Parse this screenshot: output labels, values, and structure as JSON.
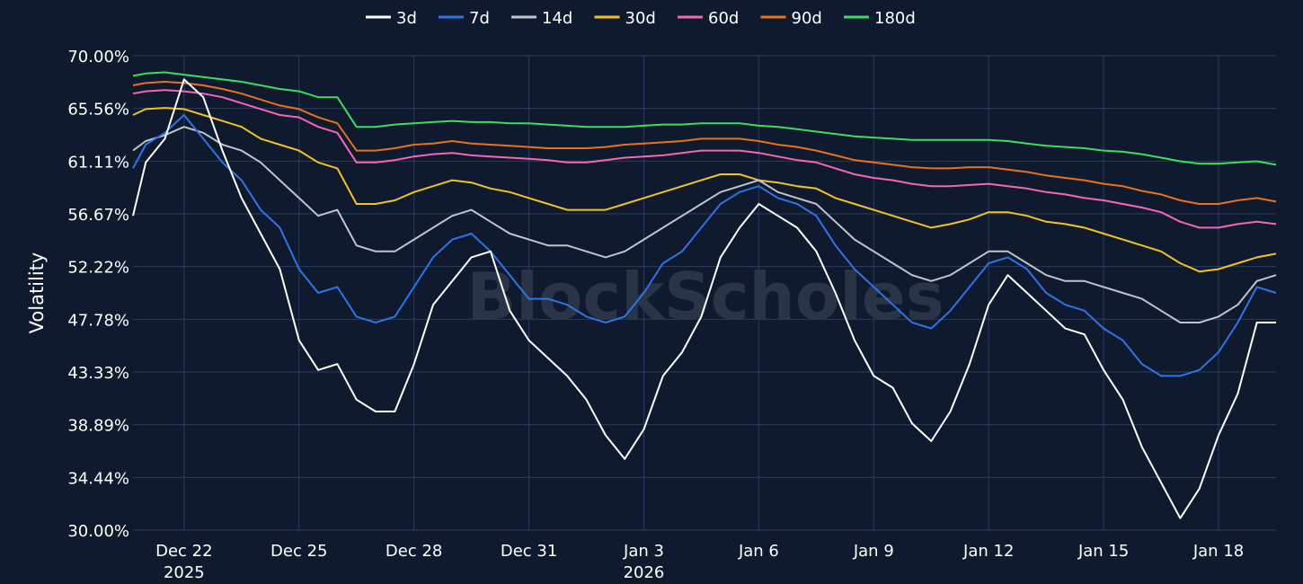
{
  "chart_data": {
    "type": "line",
    "title": "",
    "xlabel": "",
    "ylabel": "Volatility",
    "watermark": "BlockScholes",
    "ylim": [
      30.0,
      70.0
    ],
    "xlim": [
      "2025-12-20T16:00",
      "2026-01-19T12:00"
    ],
    "grid": true,
    "legend_position": "top-center",
    "y_ticks": [
      "70.00%",
      "65.56%",
      "61.11%",
      "56.67%",
      "52.22%",
      "47.78%",
      "43.33%",
      "38.89%",
      "34.44%",
      "30.00%"
    ],
    "x_ticks": [
      {
        "date": "2025-12-22",
        "label": "Dec 22",
        "sublabel": "2025"
      },
      {
        "date": "2025-12-25",
        "label": "Dec 25",
        "sublabel": ""
      },
      {
        "date": "2025-12-28",
        "label": "Dec 28",
        "sublabel": ""
      },
      {
        "date": "2025-12-31",
        "label": "Dec 31",
        "sublabel": ""
      },
      {
        "date": "2026-01-03",
        "label": "Jan 3",
        "sublabel": "2026"
      },
      {
        "date": "2026-01-06",
        "label": "Jan 6",
        "sublabel": ""
      },
      {
        "date": "2026-01-09",
        "label": "Jan 9",
        "sublabel": ""
      },
      {
        "date": "2026-01-12",
        "label": "Jan 12",
        "sublabel": ""
      },
      {
        "date": "2026-01-15",
        "label": "Jan 15",
        "sublabel": ""
      },
      {
        "date": "2026-01-18",
        "label": "Jan 18",
        "sublabel": ""
      }
    ],
    "x": [
      "2025-12-20T16:00",
      "2025-12-21T00:00",
      "2025-12-21T12:00",
      "2025-12-22T00:00",
      "2025-12-22T12:00",
      "2025-12-23T00:00",
      "2025-12-23T12:00",
      "2025-12-24T00:00",
      "2025-12-24T12:00",
      "2025-12-25T00:00",
      "2025-12-25T12:00",
      "2025-12-26T00:00",
      "2025-12-26T12:00",
      "2025-12-27T00:00",
      "2025-12-27T12:00",
      "2025-12-28T00:00",
      "2025-12-28T12:00",
      "2025-12-29T00:00",
      "2025-12-29T12:00",
      "2025-12-30T00:00",
      "2025-12-30T12:00",
      "2025-12-31T00:00",
      "2025-12-31T12:00",
      "2026-01-01T00:00",
      "2026-01-01T12:00",
      "2026-01-02T00:00",
      "2026-01-02T12:00",
      "2026-01-03T00:00",
      "2026-01-03T12:00",
      "2026-01-04T00:00",
      "2026-01-04T12:00",
      "2026-01-05T00:00",
      "2026-01-05T12:00",
      "2026-01-06T00:00",
      "2026-01-06T12:00",
      "2026-01-07T00:00",
      "2026-01-07T12:00",
      "2026-01-08T00:00",
      "2026-01-08T12:00",
      "2026-01-09T00:00",
      "2026-01-09T12:00",
      "2026-01-10T00:00",
      "2026-01-10T12:00",
      "2026-01-11T00:00",
      "2026-01-11T12:00",
      "2026-01-12T00:00",
      "2026-01-12T12:00",
      "2026-01-13T00:00",
      "2026-01-13T12:00",
      "2026-01-14T00:00",
      "2026-01-14T12:00",
      "2026-01-15T00:00",
      "2026-01-15T12:00",
      "2026-01-16T00:00",
      "2026-01-16T12:00",
      "2026-01-17T00:00",
      "2026-01-17T12:00",
      "2026-01-18T00:00",
      "2026-01-18T12:00",
      "2026-01-19T00:00",
      "2026-01-19T12:00"
    ],
    "series": [
      {
        "name": "3d",
        "color": "#ffffff",
        "values": [
          56.5,
          61.0,
          63.0,
          68.0,
          66.5,
          62.0,
          58.0,
          55.0,
          52.0,
          46.0,
          43.5,
          44.0,
          41.0,
          40.0,
          40.0,
          44.0,
          49.0,
          51.0,
          53.0,
          53.5,
          48.5,
          46.0,
          44.5,
          43.0,
          41.0,
          38.0,
          36.0,
          38.5,
          43.0,
          45.0,
          48.0,
          53.0,
          55.5,
          57.5,
          56.5,
          55.5,
          53.5,
          50.0,
          46.0,
          43.0,
          42.0,
          39.0,
          37.5,
          40.0,
          44.0,
          49.0,
          51.5,
          50.0,
          48.5,
          47.0,
          46.5,
          43.5,
          41.0,
          37.0,
          34.0,
          31.0,
          33.5,
          38.0,
          41.5,
          47.5,
          47.5
        ]
      },
      {
        "name": "7d",
        "color": "#2f73e8",
        "values": [
          60.5,
          62.5,
          63.5,
          65.0,
          63.0,
          61.0,
          59.5,
          57.0,
          55.5,
          52.0,
          50.0,
          50.5,
          48.0,
          47.5,
          48.0,
          50.5,
          53.0,
          54.5,
          55.0,
          53.5,
          51.5,
          49.5,
          49.5,
          49.0,
          48.0,
          47.5,
          48.0,
          50.0,
          52.5,
          53.5,
          55.5,
          57.5,
          58.5,
          59.0,
          58.0,
          57.5,
          56.5,
          54.0,
          52.0,
          50.5,
          49.0,
          47.5,
          47.0,
          48.5,
          50.5,
          52.5,
          53.0,
          52.0,
          50.0,
          49.0,
          48.5,
          47.0,
          46.0,
          44.0,
          43.0,
          43.0,
          43.5,
          45.0,
          47.5,
          50.5,
          50.0
        ]
      },
      {
        "name": "14d",
        "color": "#c0c4cc",
        "values": [
          62.0,
          62.8,
          63.3,
          64.0,
          63.5,
          62.5,
          62.0,
          61.0,
          59.5,
          58.0,
          56.5,
          57.0,
          54.0,
          53.5,
          53.5,
          54.5,
          55.5,
          56.5,
          57.0,
          56.0,
          55.0,
          54.5,
          54.0,
          54.0,
          53.5,
          53.0,
          53.5,
          54.5,
          55.5,
          56.5,
          57.5,
          58.5,
          59.0,
          59.5,
          58.5,
          58.0,
          57.5,
          56.0,
          54.5,
          53.5,
          52.5,
          51.5,
          51.0,
          51.5,
          52.5,
          53.5,
          53.5,
          52.5,
          51.5,
          51.0,
          51.0,
          50.5,
          50.0,
          49.5,
          48.5,
          47.5,
          47.5,
          48.0,
          49.0,
          51.0,
          51.5
        ]
      },
      {
        "name": "30d",
        "color": "#f2c227",
        "values": [
          65.0,
          65.5,
          65.6,
          65.5,
          65.0,
          64.5,
          64.0,
          63.0,
          62.5,
          62.0,
          61.0,
          60.5,
          57.5,
          57.5,
          57.8,
          58.5,
          59.0,
          59.5,
          59.3,
          58.8,
          58.5,
          58.0,
          57.5,
          57.0,
          57.0,
          57.0,
          57.5,
          58.0,
          58.5,
          59.0,
          59.5,
          60.0,
          60.0,
          59.5,
          59.3,
          59.0,
          58.8,
          58.0,
          57.5,
          57.0,
          56.5,
          56.0,
          55.5,
          55.8,
          56.2,
          56.8,
          56.8,
          56.5,
          56.0,
          55.8,
          55.5,
          55.0,
          54.5,
          54.0,
          53.5,
          52.5,
          51.8,
          52.0,
          52.5,
          53.0,
          53.3
        ]
      },
      {
        "name": "60d",
        "color": "#f466b6",
        "values": [
          66.8,
          67.0,
          67.1,
          67.0,
          66.8,
          66.5,
          66.0,
          65.5,
          65.0,
          64.8,
          64.0,
          63.5,
          61.0,
          61.0,
          61.2,
          61.5,
          61.7,
          61.8,
          61.6,
          61.5,
          61.4,
          61.3,
          61.2,
          61.0,
          61.0,
          61.2,
          61.4,
          61.5,
          61.6,
          61.8,
          62.0,
          62.0,
          62.0,
          61.8,
          61.5,
          61.2,
          61.0,
          60.5,
          60.0,
          59.7,
          59.5,
          59.2,
          59.0,
          59.0,
          59.1,
          59.2,
          59.0,
          58.8,
          58.5,
          58.3,
          58.0,
          57.8,
          57.5,
          57.2,
          56.8,
          56.0,
          55.5,
          55.5,
          55.8,
          56.0,
          55.8
        ]
      },
      {
        "name": "90d",
        "color": "#e8721c",
        "values": [
          67.5,
          67.7,
          67.8,
          67.7,
          67.5,
          67.2,
          66.8,
          66.3,
          65.8,
          65.5,
          64.8,
          64.3,
          62.0,
          62.0,
          62.2,
          62.5,
          62.6,
          62.8,
          62.6,
          62.5,
          62.4,
          62.3,
          62.2,
          62.2,
          62.2,
          62.3,
          62.5,
          62.6,
          62.7,
          62.8,
          63.0,
          63.0,
          63.0,
          62.8,
          62.5,
          62.3,
          62.0,
          61.6,
          61.2,
          61.0,
          60.8,
          60.6,
          60.5,
          60.5,
          60.6,
          60.6,
          60.4,
          60.2,
          59.9,
          59.7,
          59.5,
          59.2,
          59.0,
          58.6,
          58.3,
          57.8,
          57.5,
          57.5,
          57.8,
          58.0,
          57.7
        ]
      },
      {
        "name": "180d",
        "color": "#3ddc5f",
        "values": [
          68.3,
          68.5,
          68.6,
          68.4,
          68.2,
          68.0,
          67.8,
          67.5,
          67.2,
          67.0,
          66.5,
          66.5,
          64.0,
          64.0,
          64.2,
          64.3,
          64.4,
          64.5,
          64.4,
          64.4,
          64.3,
          64.3,
          64.2,
          64.1,
          64.0,
          64.0,
          64.0,
          64.1,
          64.2,
          64.2,
          64.3,
          64.3,
          64.3,
          64.1,
          64.0,
          63.8,
          63.6,
          63.4,
          63.2,
          63.1,
          63.0,
          62.9,
          62.9,
          62.9,
          62.9,
          62.9,
          62.8,
          62.6,
          62.4,
          62.3,
          62.2,
          62.0,
          61.9,
          61.7,
          61.4,
          61.1,
          60.9,
          60.9,
          61.0,
          61.1,
          60.8
        ]
      }
    ]
  }
}
